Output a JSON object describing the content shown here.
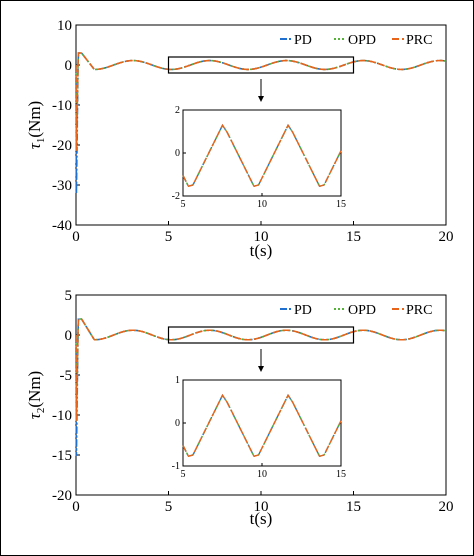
{
  "colors": {
    "PD": "#1f6fd1",
    "OPD": "#55b337",
    "PRC": "#e8641a",
    "axis": "#000000",
    "frame": "#000000"
  },
  "chart_data": [
    {
      "type": "line",
      "ylabel_symbol": "τ",
      "ylabel_sub": "1",
      "ylabel_unit": "(Nm)",
      "xlabel": "t(s)",
      "xlim": [
        0,
        20
      ],
      "ylim": [
        -40,
        10
      ],
      "xticks": [
        "0",
        "5",
        "10",
        "15",
        "20"
      ],
      "yticks": [
        "10",
        "0",
        "-10",
        "-20",
        "-30",
        "-40"
      ],
      "legend": {
        "position": "top-right",
        "entries": [
          "PD",
          "OPD",
          "PRC"
        ]
      },
      "series": [
        {
          "name": "PD",
          "min_value": -33,
          "peak_value": 3
        },
        {
          "name": "OPD",
          "min_value": -22,
          "peak_value": 3
        },
        {
          "name": "PRC",
          "min_value": -22,
          "peak_value": 3
        }
      ],
      "steady_wave": {
        "amplitude": 1.3,
        "period": 4.15,
        "phase_peak_t": 7.5
      },
      "zoom_window": {
        "xlim": [
          5,
          15
        ],
        "ylim": [
          -2,
          2
        ]
      },
      "inset": {
        "xticks": [
          "5",
          "10",
          "15"
        ],
        "yticks": [
          "2",
          "0",
          "-2"
        ],
        "xlim": [
          5,
          15
        ],
        "ylim": [
          -2,
          2
        ]
      }
    },
    {
      "type": "line",
      "ylabel_symbol": "τ",
      "ylabel_sub": "2",
      "ylabel_unit": "(Nm)",
      "xlabel": "t(s)",
      "xlim": [
        0,
        20
      ],
      "ylim": [
        -20,
        5
      ],
      "xticks": [
        "0",
        "5",
        "10",
        "15",
        "20"
      ],
      "yticks": [
        "5",
        "0",
        "-5",
        "-10",
        "-15",
        "-20"
      ],
      "legend": {
        "position": "top-right",
        "entries": [
          "PD",
          "OPD",
          "PRC"
        ]
      },
      "series": [
        {
          "name": "PD",
          "min_value": -15.5,
          "peak_value": 2
        },
        {
          "name": "OPD",
          "min_value": -11,
          "peak_value": 2
        },
        {
          "name": "PRC",
          "min_value": -11,
          "peak_value": 2
        }
      ],
      "steady_wave": {
        "amplitude": 0.7,
        "period": 4.15,
        "phase_peak_t": 7.5
      },
      "zoom_window": {
        "xlim": [
          5,
          15
        ],
        "ylim": [
          -1,
          1
        ]
      },
      "inset": {
        "xticks": [
          "5",
          "10",
          "15"
        ],
        "yticks": [
          "1",
          "0",
          "-1"
        ],
        "xlim": [
          5,
          15
        ],
        "ylim": [
          -1,
          1
        ]
      }
    }
  ]
}
